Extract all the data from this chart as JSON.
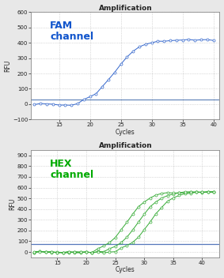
{
  "title": "Amplification",
  "fig_bg": "#e8e8e8",
  "plot_bg": "#ffffff",
  "fam": {
    "label": "FAM\nchannel",
    "label_color": "#1155cc",
    "line_color": "#3366cc",
    "marker_face": "#ffffff",
    "marker_edge": "#3366cc",
    "threshold_color": "#6688bb",
    "threshold_y": 30,
    "xlim": [
      10.5,
      41
    ],
    "ylim": [
      -100,
      600
    ],
    "yticks": [
      -100,
      0,
      100,
      200,
      300,
      400,
      500,
      600
    ],
    "xticks": [
      15,
      20,
      25,
      30,
      35,
      40
    ],
    "xlabel": "Cycles",
    "ylabel": "RFU",
    "sigmoid_L": 420,
    "sigmoid_k": 0.52,
    "sigmoid_x0": 24.0,
    "x_start": 11,
    "x_end": 40,
    "num_curves": 1
  },
  "hex": {
    "label": "HEX\nchannel",
    "label_color": "#00aa00",
    "line_color": "#33aa33",
    "marker_face": "#ffffff",
    "marker_edge": "#33aa33",
    "threshold_color": "#5577bb",
    "threshold_y": 75,
    "xlim": [
      10.5,
      43
    ],
    "ylim": [
      -50,
      950
    ],
    "yticks": [
      0,
      100,
      200,
      300,
      400,
      500,
      600,
      700,
      800,
      900
    ],
    "xticks": [
      15,
      20,
      25,
      30,
      35,
      40
    ],
    "xlabel": "Cycles",
    "ylabel": "RFU",
    "sigmoid_L": 560,
    "sigmoid_k": 0.55,
    "sigmoid_x0": 29.0,
    "x_start": 11,
    "x_end": 42,
    "num_curves": 3
  },
  "title_fontsize": 6.5,
  "axis_label_fontsize": 5.5,
  "tick_fontsize": 5,
  "channel_label_fontsize": 9,
  "grid_color": "#bbbbbb",
  "grid_style": ":"
}
